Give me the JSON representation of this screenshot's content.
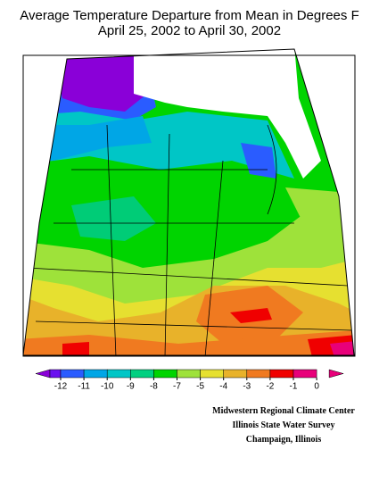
{
  "header": {
    "title": "Average Temperature Departure from Mean in Degrees F",
    "subtitle": "April 25, 2002 to April 30, 2002"
  },
  "legend": {
    "ticks": [
      -12,
      -11,
      -10,
      -9,
      -8,
      -7,
      -5,
      -4,
      -3,
      -2,
      -1,
      0
    ],
    "colors": [
      "#8a00d8",
      "#6a10f0",
      "#2a5cff",
      "#00a6e6",
      "#00c6c6",
      "#00d080",
      "#00d400",
      "#9ee23a",
      "#e6e030",
      "#e8b22a",
      "#f07a20",
      "#f00000",
      "#e8007a"
    ]
  },
  "credits": [
    "Midwestern Regional Climate Center",
    "Illinois State Water Survey",
    "Champaign, Illinois"
  ]
}
